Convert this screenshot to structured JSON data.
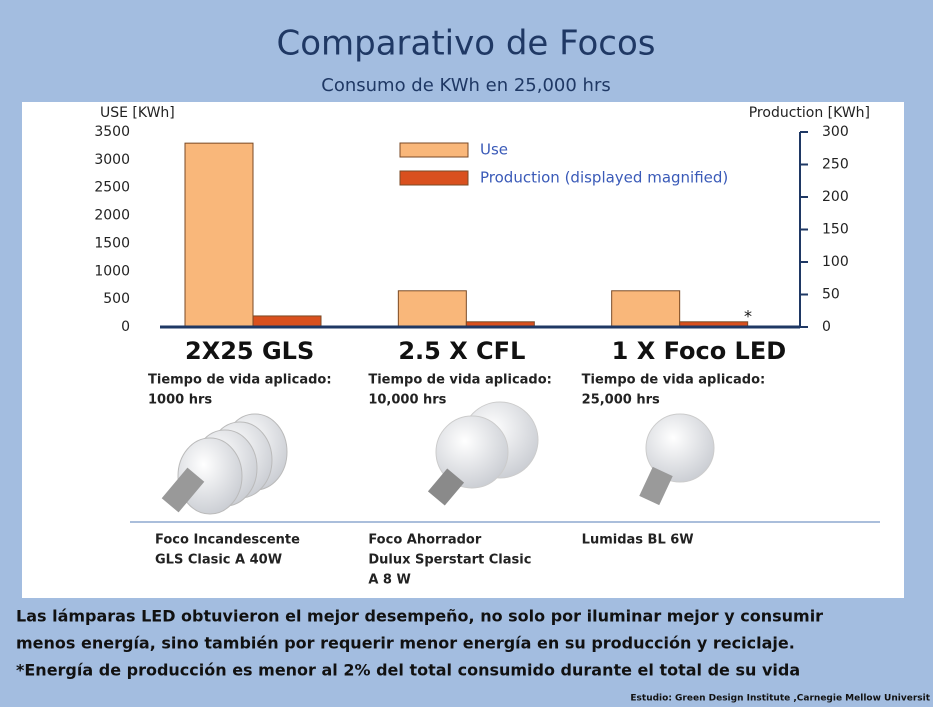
{
  "chart_data": {
    "type": "bar",
    "title": "Comparativo de Focos",
    "subtitle": "Consumo de KWh en 25,000 hrs",
    "y_label": "USE [KWh]",
    "y2_label": "Production [KWh]",
    "categories": [
      "2X25 GLS",
      "2.5 X CFL",
      "1 X Foco LED"
    ],
    "series": [
      {
        "name": "Use",
        "color": "#f9b77a",
        "values": [
          3300,
          650,
          650
        ]
      },
      {
        "name": "Production (displayed magnified)",
        "color": "#d9501e",
        "axis": "y2",
        "values": [
          17,
          8,
          8
        ]
      }
    ],
    "ylim": [
      0,
      3500
    ],
    "yticks": [
      0,
      500,
      1000,
      1500,
      2000,
      2500,
      3000,
      3500
    ],
    "y2lim": [
      0,
      300
    ],
    "y2ticks": [
      0,
      50,
      100,
      150,
      200,
      250,
      300
    ],
    "annotation": "*",
    "lifetimes": [
      [
        "Tiempo de vida aplicado:",
        "1000 hrs"
      ],
      [
        "Tiempo de vida aplicado:",
        "10,000 hrs"
      ],
      [
        "Tiempo de vida aplicado:",
        "25,000 hrs"
      ]
    ],
    "products": [
      [
        "Foco Incandescente",
        "GLS Clasic A 40W"
      ],
      [
        "Foco Ahorrador",
        "Dulux Sperstart Clasic",
        "A 8 W"
      ],
      [
        "Lumidas BL 6W"
      ]
    ],
    "notes": [
      "Las lámparas LED obtuvieron el mejor desempeño, no solo por iluminar mejor y consumir",
      "menos energía, sino también por requerir menor energía en su producción y reciclaje.",
      "*Energía de producción es menor al 2% del total consumido durante el total de su vida"
    ],
    "source": "Estudio: Green Design Institute ,Carnegie Mellow Universit"
  }
}
